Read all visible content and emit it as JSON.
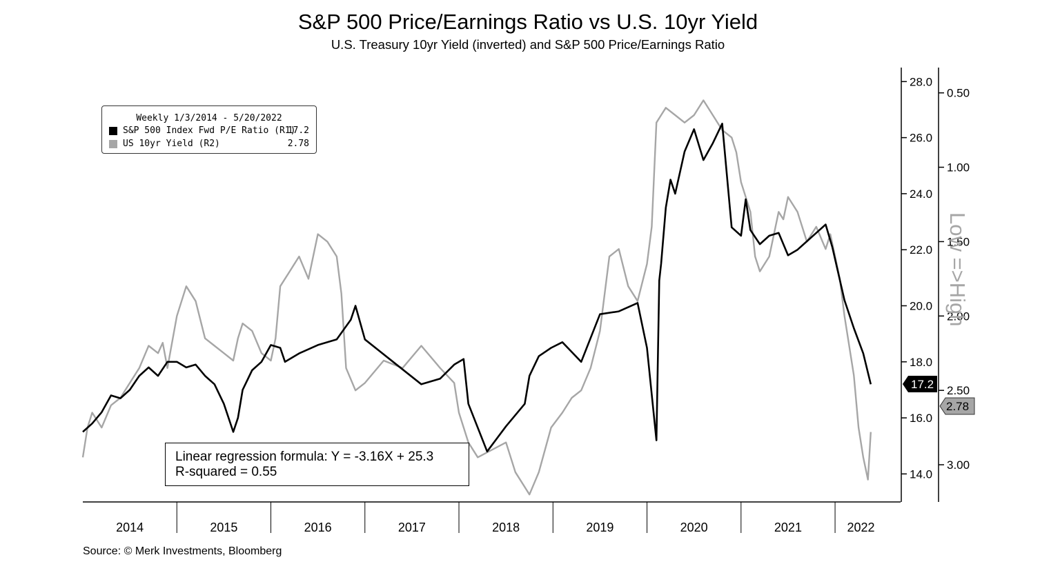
{
  "chart_data": {
    "type": "line",
    "title": "S&P 500 Price/Earnings Ratio vs U.S. 10yr Yield",
    "subtitle": "U.S. Treasury 10yr Yield (inverted) and S&P 500 Price/Earnings Ratio",
    "source": "Source: © Merk Investments, Bloomberg",
    "legend": {
      "header": "Weekly 1/3/2014 - 5/20/2022",
      "placement": "top-left",
      "entries": [
        {
          "label": "S&P 500 Index Fwd P/E Ratio (R1)",
          "value": "17.2",
          "color": "#000000"
        },
        {
          "label": "US 10yr Yield (R2)",
          "value": "2.78",
          "color": "#a6a6a6"
        }
      ]
    },
    "annotation": {
      "line1": "Linear regression formula: Y = -3.16X + 25.3",
      "line2": "R-squared = 0.55"
    },
    "inverted_axis_label": "Low =>High",
    "x_labels": [
      "2014",
      "2015",
      "2016",
      "2017",
      "2018",
      "2019",
      "2020",
      "2021",
      "2022"
    ],
    "x_range": [
      2014.0,
      2022.55
    ],
    "r1_axis": {
      "range": [
        13.0,
        28.5
      ],
      "ticks": [
        14.0,
        16.0,
        18.0,
        20.0,
        22.0,
        24.0,
        26.0,
        28.0
      ]
    },
    "r2_axis": {
      "range": [
        3.25,
        0.33
      ],
      "inverted": true,
      "ticks": [
        0.5,
        1.0,
        1.5,
        2.0,
        2.5,
        3.0
      ]
    },
    "last_values": {
      "r1": "17.2",
      "r2": "2.78"
    },
    "series": [
      {
        "name": "S&P 500 Index Fwd P/E Ratio (R1)",
        "axis": "r1",
        "color": "#000000",
        "x": [
          2014.0,
          2014.1,
          2014.2,
          2014.3,
          2014.4,
          2014.5,
          2014.6,
          2014.7,
          2014.8,
          2014.9,
          2015.0,
          2015.1,
          2015.2,
          2015.3,
          2015.4,
          2015.5,
          2015.6,
          2015.65,
          2015.7,
          2015.8,
          2015.9,
          2016.0,
          2016.1,
          2016.15,
          2016.3,
          2016.5,
          2016.7,
          2016.85,
          2016.9,
          2017.0,
          2017.3,
          2017.6,
          2017.8,
          2017.95,
          2018.05,
          2018.1,
          2018.3,
          2018.5,
          2018.7,
          2018.75,
          2018.85,
          2018.98,
          2019.1,
          2019.3,
          2019.5,
          2019.7,
          2019.9,
          2020.0,
          2020.1,
          2020.13,
          2020.15,
          2020.2,
          2020.25,
          2020.3,
          2020.4,
          2020.5,
          2020.6,
          2020.7,
          2020.8,
          2020.9,
          2021.0,
          2021.05,
          2021.1,
          2021.2,
          2021.3,
          2021.4,
          2021.5,
          2021.6,
          2021.7,
          2021.8,
          2021.9,
          2021.97,
          2022.1,
          2022.2,
          2022.3,
          2022.38
        ],
        "values": [
          15.5,
          15.8,
          16.2,
          16.8,
          16.7,
          17.0,
          17.5,
          17.8,
          17.5,
          18.0,
          18.0,
          17.8,
          17.9,
          17.5,
          17.2,
          16.5,
          15.5,
          16.0,
          17.0,
          17.7,
          18.0,
          18.6,
          18.5,
          18.0,
          18.3,
          18.6,
          18.8,
          19.5,
          20.0,
          18.8,
          18.0,
          17.2,
          17.4,
          17.9,
          18.1,
          16.5,
          14.8,
          15.7,
          16.5,
          17.5,
          18.2,
          18.5,
          18.7,
          18.0,
          19.7,
          19.8,
          20.1,
          18.5,
          15.2,
          20.9,
          21.5,
          23.5,
          24.5,
          24.0,
          25.5,
          26.3,
          25.2,
          25.8,
          26.5,
          22.8,
          22.5,
          23.8,
          22.7,
          22.2,
          22.5,
          22.6,
          21.8,
          22.0,
          22.3,
          22.6,
          22.9,
          22.1,
          20.2,
          19.2,
          18.3,
          17.2
        ]
      },
      {
        "name": "US 10yr Yield (R2)",
        "axis": "r2",
        "color": "#a6a6a6",
        "x": [
          2014.0,
          2014.05,
          2014.1,
          2014.2,
          2014.3,
          2014.4,
          2014.5,
          2014.6,
          2014.7,
          2014.8,
          2014.85,
          2014.9,
          2015.0,
          2015.1,
          2015.2,
          2015.3,
          2015.4,
          2015.5,
          2015.6,
          2015.65,
          2015.7,
          2015.8,
          2015.9,
          2016.0,
          2016.05,
          2016.1,
          2016.2,
          2016.3,
          2016.4,
          2016.5,
          2016.6,
          2016.7,
          2016.75,
          2016.8,
          2016.9,
          2017.0,
          2017.2,
          2017.4,
          2017.6,
          2017.8,
          2017.95,
          2018.0,
          2018.1,
          2018.2,
          2018.35,
          2018.5,
          2018.6,
          2018.75,
          2018.85,
          2018.98,
          2019.1,
          2019.2,
          2019.3,
          2019.4,
          2019.5,
          2019.6,
          2019.7,
          2019.8,
          2019.9,
          2020.0,
          2020.05,
          2020.1,
          2020.15,
          2020.2,
          2020.3,
          2020.4,
          2020.5,
          2020.6,
          2020.7,
          2020.8,
          2020.9,
          2020.95,
          2021.0,
          2021.1,
          2021.15,
          2021.2,
          2021.3,
          2021.4,
          2021.45,
          2021.5,
          2021.6,
          2021.7,
          2021.8,
          2021.9,
          2021.95,
          2022.0,
          2022.05,
          2022.1,
          2022.2,
          2022.25,
          2022.3,
          2022.35,
          2022.38
        ],
        "values": [
          2.95,
          2.75,
          2.65,
          2.75,
          2.6,
          2.55,
          2.45,
          2.35,
          2.2,
          2.25,
          2.18,
          2.35,
          2.0,
          1.8,
          1.9,
          2.15,
          2.2,
          2.25,
          2.3,
          2.15,
          2.05,
          2.1,
          2.25,
          2.3,
          2.15,
          1.8,
          1.7,
          1.6,
          1.75,
          1.45,
          1.5,
          1.6,
          1.85,
          2.35,
          2.5,
          2.45,
          2.3,
          2.35,
          2.2,
          2.35,
          2.45,
          2.65,
          2.85,
          2.95,
          2.9,
          2.85,
          3.05,
          3.2,
          3.05,
          2.75,
          2.65,
          2.55,
          2.5,
          2.35,
          2.1,
          1.6,
          1.55,
          1.8,
          1.9,
          1.65,
          1.4,
          0.7,
          0.65,
          0.6,
          0.65,
          0.7,
          0.65,
          0.55,
          0.65,
          0.75,
          0.8,
          0.9,
          1.1,
          1.3,
          1.6,
          1.7,
          1.6,
          1.3,
          1.35,
          1.2,
          1.3,
          1.5,
          1.4,
          1.55,
          1.45,
          1.6,
          1.75,
          2.0,
          2.4,
          2.75,
          2.95,
          3.1,
          2.78
        ]
      }
    ]
  }
}
